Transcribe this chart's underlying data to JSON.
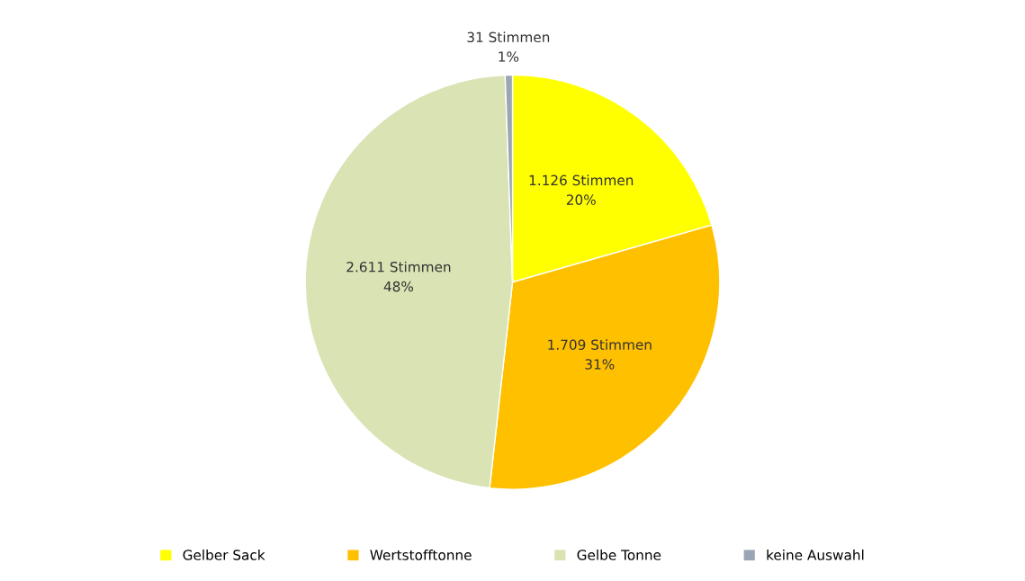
{
  "chart_data": {
    "type": "pie",
    "categories": [
      "Gelber Sack",
      "Wertstofftonne",
      "Gelbe Tonne",
      "keine Auswahl"
    ],
    "values": [
      1126,
      1709,
      2611,
      31
    ],
    "colors": [
      "#ffff00",
      "#ffc000",
      "#d9e3b4",
      "#9aa5b5"
    ],
    "value_labels": [
      "1.126 Stimmen\n20%",
      "1.709 Stimmen\n31%",
      "2.611 Stimmen\n48%",
      "31 Stimmen\n1%"
    ],
    "legend": "bottom"
  }
}
